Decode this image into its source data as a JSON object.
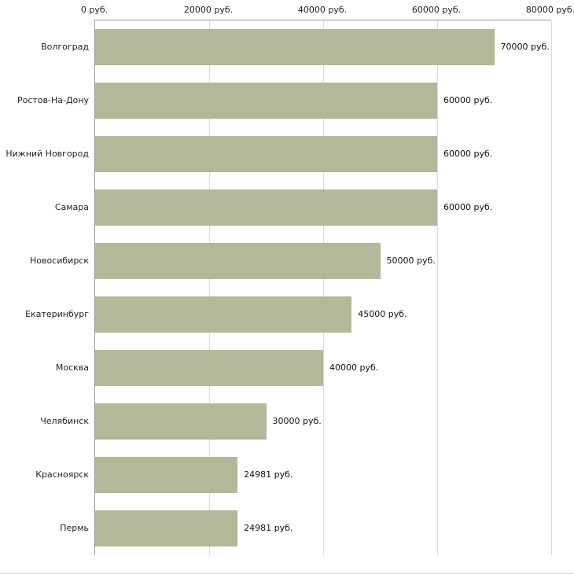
{
  "chart_data": {
    "type": "bar",
    "orientation": "horizontal",
    "title": "",
    "categories": [
      "Волгоград",
      "Ростов-На-Дону",
      "Нижний Новгород",
      "Самара",
      "Новосибирск",
      "Екатеринбург",
      "Москва",
      "Челябинск",
      "Красноярск",
      "Пермь"
    ],
    "values": [
      70000,
      60000,
      60000,
      60000,
      50000,
      45000,
      40000,
      30000,
      24981,
      24981
    ],
    "value_labels": [
      "70000 руб.",
      "60000 руб.",
      "60000 руб.",
      "60000 руб.",
      "50000 руб.",
      "45000 руб.",
      "40000 руб.",
      "30000 руб.",
      "24981 руб.",
      "24981 руб."
    ],
    "x_ticks": [
      "0 руб.",
      "20000 руб.",
      "40000 руб.",
      "60000 руб.",
      "80000 руб."
    ],
    "xlim": [
      0,
      80000
    ],
    "xlabel": "",
    "ylabel": "",
    "bar_color": "#b2b999",
    "grid": true,
    "legend_position": "none"
  }
}
